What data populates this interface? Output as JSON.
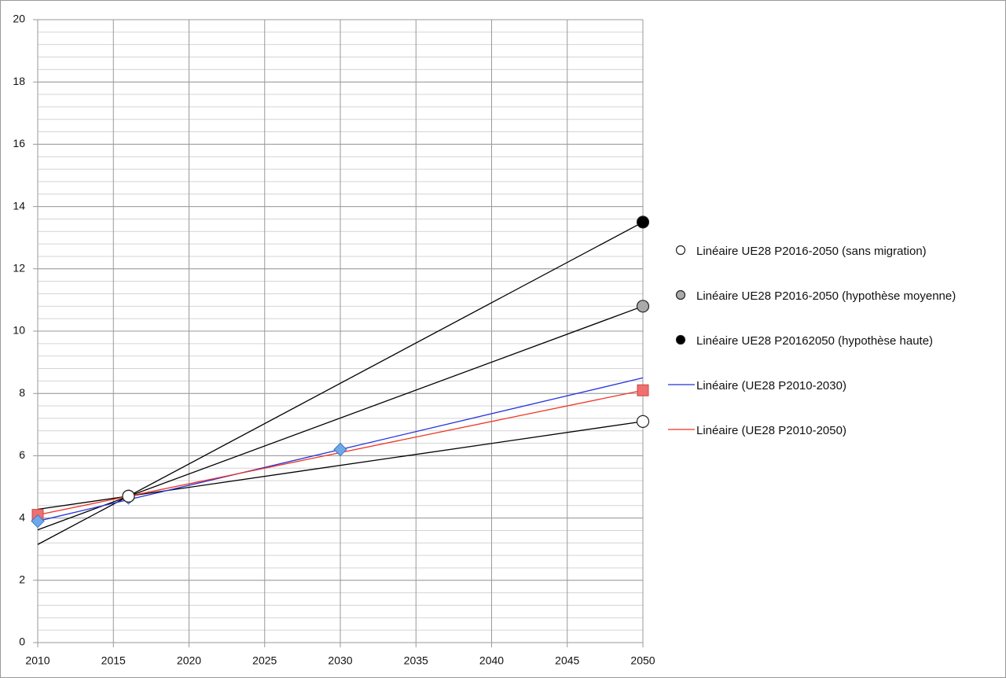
{
  "chart_data": {
    "type": "scatter",
    "xlim": [
      2010,
      2050
    ],
    "xticks": [
      2010,
      2015,
      2020,
      2025,
      2030,
      2035,
      2040,
      2045,
      2050
    ],
    "ylim": [
      0,
      20
    ],
    "yticks": [
      0,
      2,
      4,
      6,
      8,
      10,
      12,
      14,
      16,
      18,
      20
    ],
    "grid": true,
    "minor_grid_step": 0.4,
    "legend": "right",
    "series": [
      {
        "name": "Linéaire UE28 P2016-2050 (sans migration)",
        "marker": "circle",
        "color": "#ffffff",
        "x": [
          2016,
          2050
        ],
        "values": [
          4.7,
          7.1
        ],
        "trendline": {
          "color": "#000000",
          "x": [
            2010,
            2050
          ],
          "values": [
            4.28,
            7.1
          ]
        }
      },
      {
        "name": "Linéaire UE28 P2016-2050 (hypothèse moyenne)",
        "marker": "circle",
        "color": "#aaaaaa",
        "x": [
          2016,
          2050
        ],
        "values": [
          4.7,
          10.8
        ],
        "trendline": {
          "color": "#000000",
          "x": [
            2010,
            2050
          ],
          "values": [
            3.62,
            10.8
          ]
        }
      },
      {
        "name": "Linéaire UE28 P20162050 (hypothèse haute)",
        "marker": "circle",
        "color": "#000000",
        "x": [
          2016,
          2050
        ],
        "values": [
          4.7,
          13.5
        ],
        "trendline": {
          "color": "#000000",
          "x": [
            2010,
            2050
          ],
          "values": [
            3.15,
            13.5
          ]
        }
      },
      {
        "marker": "diamond",
        "color": "#6fa8e8",
        "x": [
          2010,
          2016,
          2030
        ],
        "values": [
          3.9,
          4.65,
          6.2
        ],
        "trendline": {
          "name": "Linéaire (UE28 P2010-2030)",
          "color": "#2233dd",
          "x": [
            2010,
            2050
          ],
          "values": [
            3.9,
            8.5
          ]
        }
      },
      {
        "marker": "square",
        "color": "#f07070",
        "x": [
          2010,
          2050
        ],
        "values": [
          4.1,
          8.1
        ],
        "trendline": {
          "name": "Linéaire (UE28 P2010-2050)",
          "color": "#ee3322",
          "x": [
            2010,
            2050
          ],
          "values": [
            4.1,
            8.1
          ]
        }
      }
    ]
  }
}
